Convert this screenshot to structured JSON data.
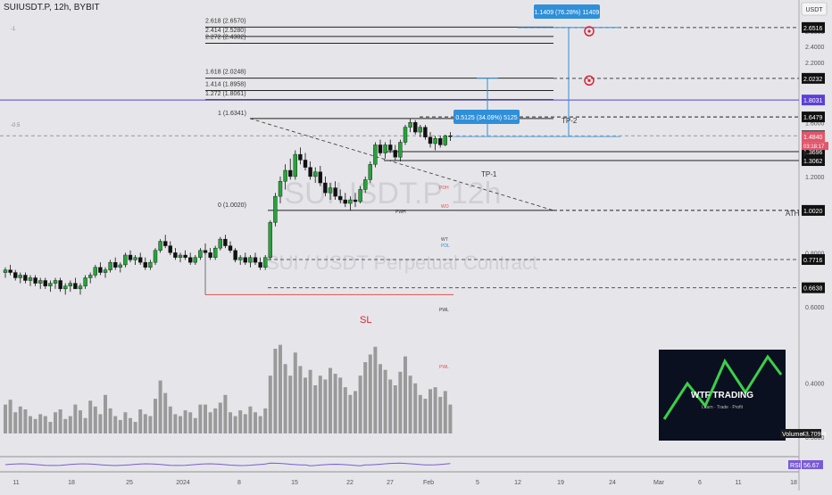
{
  "header": {
    "symbol_title": "SUIUSDT.P, 12h, BYBIT",
    "currency_label": "USDT"
  },
  "watermark": {
    "line1": "SUIUSDT.P 12h",
    "line2": "SUI / USDT Perpetual Contract"
  },
  "left_labels": [
    "-1",
    "-0.5"
  ],
  "colors": {
    "background": "#e6e6ea",
    "candle_up": "#26a33a",
    "candle_down": "#111111",
    "volume": "#808080",
    "purple_line": "#5b3fd6",
    "red_level": "#e05050",
    "price_current": "#e0566a",
    "measure_blue": "#2f8fd8"
  },
  "chart_data": {
    "type": "candlestick",
    "title": "SUIUSDT.P, 12h, BYBIT",
    "price_scale": "log",
    "ylim": [
      0.3,
      2.9
    ],
    "y_ticks": [
      "2.6000",
      "2.4000",
      "2.2000",
      "1.6000",
      "1.2000",
      "0.8000",
      "0.6000",
      "0.4000",
      "0.3000"
    ],
    "x_ticks": [
      "11",
      "18",
      "25",
      "2024",
      "8",
      "15",
      "22",
      "27",
      "Feb",
      "5",
      "12",
      "19",
      "24",
      "Mar",
      "6",
      "11",
      "18"
    ],
    "candles": [
      [
        0.72,
        0.74,
        0.7,
        0.73
      ],
      [
        0.73,
        0.75,
        0.71,
        0.72
      ],
      [
        0.72,
        0.73,
        0.69,
        0.7
      ],
      [
        0.7,
        0.72,
        0.68,
        0.71
      ],
      [
        0.71,
        0.72,
        0.68,
        0.69
      ],
      [
        0.69,
        0.71,
        0.67,
        0.7
      ],
      [
        0.7,
        0.71,
        0.67,
        0.68
      ],
      [
        0.68,
        0.7,
        0.66,
        0.69
      ],
      [
        0.69,
        0.7,
        0.66,
        0.67
      ],
      [
        0.67,
        0.69,
        0.65,
        0.68
      ],
      [
        0.68,
        0.7,
        0.66,
        0.69
      ],
      [
        0.69,
        0.7,
        0.65,
        0.66
      ],
      [
        0.66,
        0.68,
        0.64,
        0.67
      ],
      [
        0.67,
        0.69,
        0.65,
        0.68
      ],
      [
        0.68,
        0.7,
        0.66,
        0.66
      ],
      [
        0.66,
        0.68,
        0.64,
        0.67
      ],
      [
        0.67,
        0.71,
        0.66,
        0.7
      ],
      [
        0.7,
        0.72,
        0.68,
        0.71
      ],
      [
        0.71,
        0.75,
        0.7,
        0.74
      ],
      [
        0.74,
        0.76,
        0.71,
        0.72
      ],
      [
        0.72,
        0.74,
        0.7,
        0.73
      ],
      [
        0.73,
        0.77,
        0.72,
        0.76
      ],
      [
        0.76,
        0.78,
        0.73,
        0.74
      ],
      [
        0.74,
        0.76,
        0.72,
        0.75
      ],
      [
        0.75,
        0.8,
        0.74,
        0.79
      ],
      [
        0.79,
        0.81,
        0.76,
        0.77
      ],
      [
        0.77,
        0.79,
        0.75,
        0.78
      ],
      [
        0.78,
        0.8,
        0.75,
        0.76
      ],
      [
        0.76,
        0.78,
        0.73,
        0.74
      ],
      [
        0.74,
        0.77,
        0.73,
        0.76
      ],
      [
        0.76,
        0.82,
        0.75,
        0.81
      ],
      [
        0.81,
        0.86,
        0.8,
        0.85
      ],
      [
        0.85,
        0.88,
        0.82,
        0.83
      ],
      [
        0.83,
        0.85,
        0.79,
        0.8
      ],
      [
        0.8,
        0.82,
        0.77,
        0.78
      ],
      [
        0.78,
        0.8,
        0.76,
        0.79
      ],
      [
        0.79,
        0.81,
        0.77,
        0.78
      ],
      [
        0.78,
        0.8,
        0.75,
        0.76
      ],
      [
        0.76,
        0.79,
        0.75,
        0.78
      ],
      [
        0.78,
        0.82,
        0.77,
        0.81
      ],
      [
        0.81,
        0.84,
        0.79,
        0.8
      ],
      [
        0.8,
        0.82,
        0.77,
        0.78
      ],
      [
        0.78,
        0.83,
        0.77,
        0.82
      ],
      [
        0.82,
        0.87,
        0.81,
        0.86
      ],
      [
        0.86,
        0.88,
        0.82,
        0.83
      ],
      [
        0.83,
        0.85,
        0.8,
        0.81
      ],
      [
        0.81,
        0.82,
        0.76,
        0.77
      ],
      [
        0.77,
        0.79,
        0.75,
        0.78
      ],
      [
        0.78,
        0.8,
        0.75,
        0.76
      ],
      [
        0.76,
        0.79,
        0.74,
        0.78
      ],
      [
        0.78,
        0.8,
        0.75,
        0.76
      ],
      [
        0.76,
        0.78,
        0.73,
        0.74
      ],
      [
        0.74,
        0.79,
        0.73,
        0.78
      ],
      [
        0.78,
        0.95,
        0.77,
        0.94
      ],
      [
        0.94,
        1.1,
        0.92,
        1.08
      ],
      [
        1.08,
        1.2,
        1.04,
        1.17
      ],
      [
        1.17,
        1.28,
        1.12,
        1.24
      ],
      [
        1.24,
        1.32,
        1.18,
        1.2
      ],
      [
        1.2,
        1.38,
        1.18,
        1.35
      ],
      [
        1.35,
        1.4,
        1.28,
        1.31
      ],
      [
        1.31,
        1.36,
        1.24,
        1.26
      ],
      [
        1.26,
        1.3,
        1.18,
        1.2
      ],
      [
        1.2,
        1.26,
        1.16,
        1.23
      ],
      [
        1.23,
        1.27,
        1.14,
        1.16
      ],
      [
        1.16,
        1.2,
        1.08,
        1.1
      ],
      [
        1.1,
        1.16,
        1.06,
        1.13
      ],
      [
        1.13,
        1.17,
        1.06,
        1.08
      ],
      [
        1.08,
        1.12,
        1.04,
        1.06
      ],
      [
        1.06,
        1.1,
        1.02,
        1.04
      ],
      [
        1.04,
        1.08,
        1.0,
        1.06
      ],
      [
        1.06,
        1.1,
        1.02,
        1.05
      ],
      [
        1.05,
        1.14,
        1.04,
        1.12
      ],
      [
        1.12,
        1.2,
        1.1,
        1.18
      ],
      [
        1.18,
        1.3,
        1.16,
        1.28
      ],
      [
        1.28,
        1.44,
        1.26,
        1.42
      ],
      [
        1.42,
        1.46,
        1.34,
        1.36
      ],
      [
        1.36,
        1.44,
        1.32,
        1.42
      ],
      [
        1.42,
        1.46,
        1.36,
        1.38
      ],
      [
        1.38,
        1.42,
        1.31,
        1.33
      ],
      [
        1.33,
        1.46,
        1.3,
        1.44
      ],
      [
        1.44,
        1.58,
        1.42,
        1.56
      ],
      [
        1.56,
        1.63,
        1.52,
        1.6
      ],
      [
        1.6,
        1.62,
        1.5,
        1.52
      ],
      [
        1.52,
        1.58,
        1.48,
        1.56
      ],
      [
        1.56,
        1.58,
        1.46,
        1.48
      ],
      [
        1.48,
        1.52,
        1.4,
        1.43
      ],
      [
        1.43,
        1.49,
        1.38,
        1.47
      ],
      [
        1.47,
        1.49,
        1.4,
        1.42
      ],
      [
        1.42,
        1.5,
        1.41,
        1.49
      ],
      [
        1.49,
        1.52,
        1.45,
        1.485
      ]
    ],
    "volume": [
      30,
      35,
      22,
      28,
      25,
      18,
      15,
      20,
      18,
      12,
      22,
      25,
      15,
      18,
      30,
      24,
      16,
      34,
      28,
      20,
      40,
      26,
      18,
      14,
      22,
      16,
      12,
      25,
      20,
      18,
      36,
      55,
      42,
      28,
      20,
      18,
      24,
      22,
      16,
      30,
      30,
      22,
      26,
      32,
      40,
      22,
      18,
      24,
      20,
      28,
      22,
      18,
      26,
      60,
      88,
      92,
      72,
      60,
      84,
      70,
      58,
      66,
      50,
      60,
      56,
      68,
      62,
      58,
      48,
      40,
      44,
      60,
      74,
      82,
      90,
      72,
      66,
      56,
      50,
      64,
      80,
      60,
      52,
      40,
      36,
      46,
      48,
      38,
      44,
      30
    ],
    "rsi": 56.67,
    "volume_label": "Volume",
    "volume_value": "43.709M",
    "rsi_label": "RSI",
    "rsi_value": "56.67",
    "fib_levels": [
      {
        "label": "2.618 (2.6570)",
        "price": 2.657
      },
      {
        "label": "2.414 (2.5280)",
        "price": 2.528
      },
      {
        "label": "2.272 (2.4382)",
        "price": 2.4382
      },
      {
        "label": "1.618 (2.0248)",
        "price": 2.0248
      },
      {
        "label": "1.414 (1.8958)",
        "price": 1.8958
      },
      {
        "label": "1.272 (1.8061)",
        "price": 1.8061
      },
      {
        "label": "1 (1.6341)",
        "price": 1.6341
      },
      {
        "label": "0 (1.0020)",
        "price": 1.002
      }
    ],
    "price_tags": [
      {
        "label": "2.6516",
        "price": 2.6516,
        "style": "dark"
      },
      {
        "label": "2.0232",
        "price": 2.0232,
        "style": "dark"
      },
      {
        "label": "1.8031",
        "price": 1.8031,
        "style": "purple"
      },
      {
        "label": "1.6479",
        "price": 1.6479,
        "style": "dark"
      },
      {
        "label": "1.4900",
        "price": 1.49,
        "style": "dark"
      },
      {
        "label": "1.4840",
        "price": 1.484,
        "style": "red"
      },
      {
        "label": "1.3696",
        "price": 1.3696,
        "style": "dark"
      },
      {
        "label": "1.3062",
        "price": 1.3062,
        "style": "dark"
      },
      {
        "label": "1.0020",
        "price": 1.002,
        "style": "dark"
      },
      {
        "label": "0.7716",
        "price": 0.7716,
        "style": "dark"
      },
      {
        "label": "0.6638",
        "price": 0.6638,
        "style": "dark"
      }
    ],
    "countdown": "03:18:17",
    "measure_boxes": [
      {
        "label": "1.1409 (76.28%) 11409"
      },
      {
        "label": "0.5125 (34.09%) 5125"
      }
    ],
    "annotations": [
      "TP-2",
      "TP-1",
      "ATH",
      "SL",
      "PWH",
      "PWL",
      "PDH",
      "PDL",
      "WO",
      "WT"
    ],
    "logo_text": "WTF TRADING",
    "logo_tagline": "Learn · Trade · Profit"
  }
}
